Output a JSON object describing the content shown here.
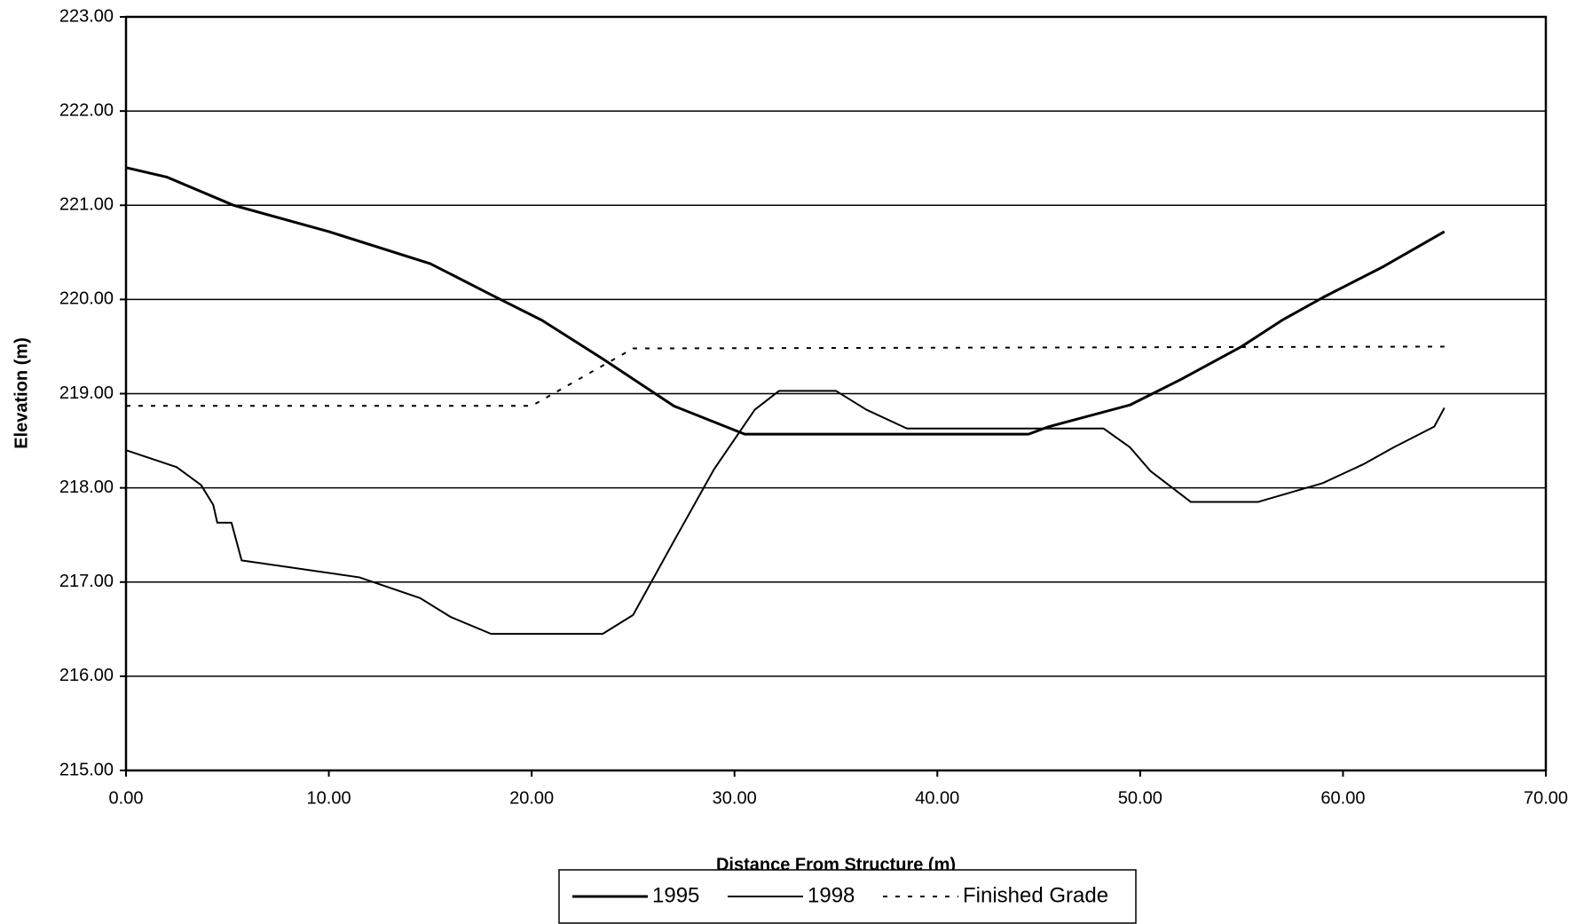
{
  "chart_data": {
    "type": "line",
    "x_label": "Distance From Structure (m)",
    "y_label": "Elevation (m)",
    "xlim": [
      0,
      70
    ],
    "ylim": [
      215,
      223
    ],
    "xticks": [
      {
        "value": 0,
        "label": "0.00"
      },
      {
        "value": 10,
        "label": "10.00"
      },
      {
        "value": 20,
        "label": "20.00"
      },
      {
        "value": 30,
        "label": "30.00"
      },
      {
        "value": 40,
        "label": "40.00"
      },
      {
        "value": 50,
        "label": "50.00"
      },
      {
        "value": 60,
        "label": "60.00"
      },
      {
        "value": 70,
        "label": "70.00"
      }
    ],
    "yticks": [
      {
        "value": 215,
        "label": "215.00"
      },
      {
        "value": 216,
        "label": "216.00"
      },
      {
        "value": 217,
        "label": "217.00"
      },
      {
        "value": 218,
        "label": "218.00"
      },
      {
        "value": 219,
        "label": "219.00"
      },
      {
        "value": 220,
        "label": "220.00"
      },
      {
        "value": 221,
        "label": "221.00"
      },
      {
        "value": 222,
        "label": "222.00"
      },
      {
        "value": 223,
        "label": "223.00"
      }
    ],
    "grid": true,
    "legend": "bottom",
    "series": [
      {
        "name": "1995",
        "color": "#000000",
        "dash": "solid",
        "width": 3,
        "x": [
          0,
          2,
          5.3,
          10,
          15,
          18,
          20.5,
          23.5,
          27,
          30.5,
          44.5,
          45.5,
          49.5,
          52,
          55,
          57,
          59,
          62,
          65
        ],
        "values": [
          221.4,
          221.3,
          221.0,
          220.72,
          220.38,
          220.05,
          219.78,
          219.37,
          218.87,
          218.57,
          218.57,
          218.65,
          218.88,
          219.15,
          219.5,
          219.78,
          220.02,
          220.35,
          220.72
        ]
      },
      {
        "name": "1998",
        "color": "#000000",
        "dash": "solid",
        "width": 2,
        "x": [
          0,
          2.5,
          3.7,
          4.3,
          4.5,
          5.2,
          5.7,
          11.5,
          14.5,
          16,
          18,
          23.5,
          25,
          27,
          29,
          31,
          32.2,
          35,
          36.5,
          38.5,
          48.2,
          49.5,
          50.5,
          52.5,
          55.8,
          59,
          61,
          62.5,
          64.5,
          65
        ],
        "values": [
          218.4,
          218.22,
          218.03,
          217.82,
          217.63,
          217.63,
          217.23,
          217.05,
          216.83,
          216.63,
          216.45,
          216.45,
          216.65,
          217.43,
          218.2,
          218.83,
          219.03,
          219.03,
          218.83,
          218.63,
          218.63,
          218.43,
          218.18,
          217.85,
          217.85,
          218.05,
          218.25,
          218.43,
          218.65,
          218.85
        ]
      },
      {
        "name": "Finished Grade",
        "color": "#000000",
        "dash": "dotted",
        "width": 2,
        "x": [
          0,
          20,
          25,
          65
        ],
        "values": [
          218.87,
          218.87,
          219.48,
          219.5
        ]
      }
    ]
  }
}
